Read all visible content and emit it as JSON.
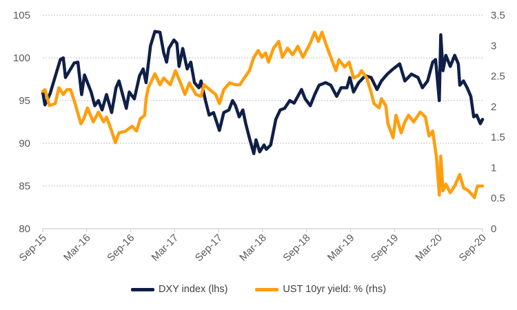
{
  "chart_data": {
    "type": "line",
    "title": "",
    "x_unit": "months since Sep-15",
    "x_ticks": [
      0,
      6,
      12,
      18,
      24,
      30,
      36,
      42,
      48,
      54,
      60
    ],
    "x_tick_labels": [
      "Sep-15",
      "Mar-16",
      "Sep-16",
      "Mar-17",
      "Sep-17",
      "Mar-18",
      "Sep-18",
      "Mar-19",
      "Sep-19",
      "Mar-20",
      "Sep-20"
    ],
    "xlim": [
      0,
      60
    ],
    "y_left": {
      "ylim": [
        80,
        105
      ],
      "ticks": [
        80,
        85,
        90,
        95,
        100,
        105
      ],
      "tick_labels": [
        "80",
        "85",
        "90",
        "95",
        "100",
        "105"
      ]
    },
    "y_right": {
      "ylim": [
        0,
        3.5
      ],
      "ticks": [
        0,
        0.5,
        1,
        1.5,
        2,
        2.5,
        3,
        3.5
      ],
      "tick_labels": [
        "0",
        "0.5",
        "1",
        "1.5",
        "2",
        "2.5",
        "3",
        "3.5"
      ]
    },
    "grid": true,
    "legend_position": "bottom",
    "series": [
      {
        "name": "DXY index (lhs)",
        "axis": "left",
        "color": "#0f1f47",
        "points": [
          [
            0,
            96
          ],
          [
            0.3,
            94.5
          ],
          [
            1,
            95.8
          ],
          [
            2.4,
            99.8
          ],
          [
            2.8,
            100
          ],
          [
            3.1,
            97.7
          ],
          [
            4.3,
            99.4
          ],
          [
            4.8,
            99.5
          ],
          [
            5.3,
            95.7
          ],
          [
            5.7,
            98
          ],
          [
            6.6,
            96
          ],
          [
            7.1,
            94.4
          ],
          [
            7.6,
            95
          ],
          [
            8.1,
            93.9
          ],
          [
            8.7,
            95.7
          ],
          [
            9.4,
            93.6
          ],
          [
            10,
            96.5
          ],
          [
            10.4,
            97.3
          ],
          [
            11.4,
            94.1
          ],
          [
            11.8,
            96
          ],
          [
            12.5,
            95.2
          ],
          [
            13.2,
            97.9
          ],
          [
            13.7,
            98.7
          ],
          [
            14.1,
            97.1
          ],
          [
            14.7,
            101.4
          ],
          [
            15.3,
            103.1
          ],
          [
            16,
            103
          ],
          [
            16.5,
            100.6
          ],
          [
            16.9,
            99.5
          ],
          [
            17.2,
            101.1
          ],
          [
            17.9,
            102.1
          ],
          [
            18.3,
            101.7
          ],
          [
            18.6,
            99
          ],
          [
            19.1,
            101.1
          ],
          [
            19.7,
            98.7
          ],
          [
            20.2,
            99.5
          ],
          [
            20.7,
            97.1
          ],
          [
            21.3,
            96.5
          ],
          [
            21.6,
            97.3
          ],
          [
            22.2,
            95
          ],
          [
            22.7,
            93.3
          ],
          [
            23.3,
            93.6
          ],
          [
            24.1,
            91.5
          ],
          [
            24.7,
            93.6
          ],
          [
            25.4,
            93.9
          ],
          [
            25.9,
            95
          ],
          [
            26.3,
            94.4
          ],
          [
            26.8,
            93.1
          ],
          [
            27.3,
            93.9
          ],
          [
            27.7,
            92.3
          ],
          [
            28.2,
            90.6
          ],
          [
            28.8,
            88.8
          ],
          [
            29.1,
            90.4
          ],
          [
            29.6,
            89
          ],
          [
            30.2,
            89.8
          ],
          [
            30.5,
            89.3
          ],
          [
            31.1,
            89.8
          ],
          [
            31.8,
            92.8
          ],
          [
            32.4,
            93.9
          ],
          [
            33,
            94.1
          ],
          [
            33.7,
            95
          ],
          [
            34.3,
            94.7
          ],
          [
            35.3,
            96.3
          ],
          [
            35.8,
            95.2
          ],
          [
            36.5,
            94.4
          ],
          [
            37.1,
            95.7
          ],
          [
            37.7,
            96.8
          ],
          [
            38.6,
            97.1
          ],
          [
            39.3,
            96.8
          ],
          [
            40.1,
            95.5
          ],
          [
            40.7,
            96.5
          ],
          [
            41.5,
            96.5
          ],
          [
            41.9,
            97.7
          ],
          [
            42.4,
            96
          ],
          [
            43.1,
            97.1
          ],
          [
            44,
            97.9
          ],
          [
            44.8,
            97.7
          ],
          [
            45.6,
            96.3
          ],
          [
            46.2,
            97.3
          ],
          [
            47,
            98.1
          ],
          [
            47.8,
            98.7
          ],
          [
            48.7,
            99.3
          ],
          [
            49.4,
            97.3
          ],
          [
            50.3,
            98.1
          ],
          [
            51.2,
            97.7
          ],
          [
            51.8,
            96.5
          ],
          [
            52.5,
            97.3
          ],
          [
            53.2,
            99.5
          ],
          [
            53.6,
            99.8
          ],
          [
            54.1,
            95
          ],
          [
            54.3,
            102.7
          ],
          [
            54.6,
            98.5
          ],
          [
            55,
            100.3
          ],
          [
            55.6,
            99
          ],
          [
            56.2,
            100.3
          ],
          [
            56.7,
            99.3
          ],
          [
            56.9,
            96.8
          ],
          [
            57.4,
            97.3
          ],
          [
            57.9,
            96.5
          ],
          [
            58.4,
            95.5
          ],
          [
            58.8,
            93.1
          ],
          [
            59.2,
            93.3
          ],
          [
            59.7,
            92.3
          ],
          [
            60,
            92.8
          ]
        ]
      },
      {
        "name": "UST 10yr yield: % (rhs)",
        "axis": "right",
        "color": "#ff9e0d",
        "points": [
          [
            0,
            2.25
          ],
          [
            0.3,
            2.28
          ],
          [
            0.9,
            2.02
          ],
          [
            1.7,
            2.05
          ],
          [
            2.2,
            2.31
          ],
          [
            2.8,
            2.2
          ],
          [
            3.3,
            2.28
          ],
          [
            3.8,
            2.28
          ],
          [
            4.5,
            2.02
          ],
          [
            5.2,
            1.72
          ],
          [
            5.6,
            1.8
          ],
          [
            6.1,
            1.98
          ],
          [
            6.9,
            1.75
          ],
          [
            7.6,
            1.91
          ],
          [
            8.3,
            1.75
          ],
          [
            8.7,
            1.83
          ],
          [
            9.4,
            1.6
          ],
          [
            9.9,
            1.41
          ],
          [
            10.4,
            1.57
          ],
          [
            11.3,
            1.6
          ],
          [
            12.2,
            1.68
          ],
          [
            12.8,
            1.6
          ],
          [
            13.3,
            1.8
          ],
          [
            13.9,
            1.86
          ],
          [
            14.1,
            2.13
          ],
          [
            14.4,
            2.31
          ],
          [
            15.3,
            2.54
          ],
          [
            16,
            2.36
          ],
          [
            16.5,
            2.47
          ],
          [
            17.4,
            2.36
          ],
          [
            18.1,
            2.59
          ],
          [
            18.8,
            2.39
          ],
          [
            19.4,
            2.2
          ],
          [
            20,
            2.39
          ],
          [
            20.9,
            2.2
          ],
          [
            21.6,
            2.17
          ],
          [
            22,
            2.36
          ],
          [
            22.8,
            2.28
          ],
          [
            23.6,
            2.2
          ],
          [
            24.1,
            2.05
          ],
          [
            24.7,
            2.28
          ],
          [
            25.5,
            2.39
          ],
          [
            26.3,
            2.36
          ],
          [
            26.9,
            2.36
          ],
          [
            27.5,
            2.47
          ],
          [
            28.2,
            2.59
          ],
          [
            28.8,
            2.81
          ],
          [
            29.4,
            2.92
          ],
          [
            29.9,
            2.81
          ],
          [
            30.4,
            2.88
          ],
          [
            30.8,
            2.73
          ],
          [
            31.5,
            2.96
          ],
          [
            32.2,
            3.07
          ],
          [
            32.7,
            2.81
          ],
          [
            33.4,
            2.96
          ],
          [
            34.1,
            2.85
          ],
          [
            34.8,
            2.99
          ],
          [
            35.5,
            2.81
          ],
          [
            36.5,
            3.04
          ],
          [
            37.1,
            3.22
          ],
          [
            37.6,
            3.07
          ],
          [
            38.1,
            3.22
          ],
          [
            38.6,
            3.04
          ],
          [
            39.3,
            2.81
          ],
          [
            40,
            2.59
          ],
          [
            40.4,
            2.77
          ],
          [
            41.2,
            2.65
          ],
          [
            41.8,
            2.73
          ],
          [
            42.4,
            2.47
          ],
          [
            43.1,
            2.51
          ],
          [
            43.5,
            2.59
          ],
          [
            44.2,
            2.47
          ],
          [
            44.7,
            2.28
          ],
          [
            45.2,
            2.05
          ],
          [
            45.9,
            1.98
          ],
          [
            46.2,
            2.13
          ],
          [
            46.8,
            2.02
          ],
          [
            47.1,
            1.72
          ],
          [
            47.8,
            1.49
          ],
          [
            48.2,
            1.86
          ],
          [
            48.9,
            1.57
          ],
          [
            49.4,
            1.75
          ],
          [
            49.9,
            1.86
          ],
          [
            50.6,
            1.75
          ],
          [
            51.5,
            1.91
          ],
          [
            52.2,
            1.83
          ],
          [
            52.7,
            1.52
          ],
          [
            53.2,
            1.6
          ],
          [
            53.7,
            1.19
          ],
          [
            54.1,
            0.55
          ],
          [
            54.3,
            1.19
          ],
          [
            54.6,
            0.62
          ],
          [
            55,
            0.73
          ],
          [
            55.6,
            0.59
          ],
          [
            56.2,
            0.7
          ],
          [
            56.9,
            0.89
          ],
          [
            57.4,
            0.67
          ],
          [
            58.1,
            0.62
          ],
          [
            58.9,
            0.51
          ],
          [
            59.3,
            0.7
          ],
          [
            60,
            0.7
          ]
        ]
      }
    ]
  }
}
